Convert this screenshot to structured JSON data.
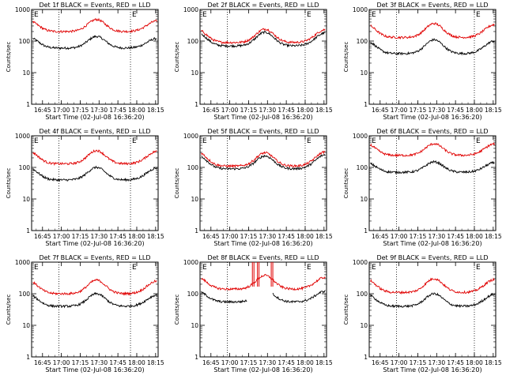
{
  "chart_data": [
    {
      "type": "line",
      "title": "Det 1f BLACK = Events, RED = LLD",
      "xlabel": "Start Time (02-Jul-08 16:36:20)",
      "ylabel": "Counts/sec",
      "yscale": "log",
      "ylim": [
        1,
        1000
      ],
      "xticks": [
        "16:45",
        "17:00",
        "17:15",
        "17:30",
        "17:45",
        "18:00",
        "18:15"
      ],
      "yticks": [
        "1",
        "10",
        "100",
        "1000"
      ],
      "markers": [
        {
          "label": "E",
          "position": "left"
        },
        {
          "label": "E",
          "position": "right"
        }
      ],
      "vlines": [
        "16:58",
        "17:55"
      ],
      "series": [
        {
          "color": "black",
          "baseline": 60,
          "peak1": 140,
          "peak2": 140,
          "start": 130,
          "end": 120
        },
        {
          "color": "red",
          "baseline": 200,
          "peak1": 480,
          "peak2": 480,
          "start": 430,
          "end": 430
        }
      ]
    },
    {
      "type": "line",
      "title": "Det 2f BLACK = Events, RED = LLD",
      "xlabel": "Start Time (02-Jul-08 16:36:20)",
      "ylabel": "Counts/sec",
      "yscale": "log",
      "ylim": [
        1,
        1000
      ],
      "xticks": [
        "16:45",
        "17:00",
        "17:15",
        "17:30",
        "17:45",
        "18:00",
        "18:15"
      ],
      "yticks": [
        "1",
        "10",
        "100",
        "1000"
      ],
      "markers": [
        {
          "label": "E",
          "position": "left"
        },
        {
          "label": "E",
          "position": "right"
        }
      ],
      "vlines": [
        "16:58",
        "18:00"
      ],
      "series": [
        {
          "color": "black",
          "baseline": 70,
          "peak1": 190,
          "peak2": 190,
          "start": 180,
          "end": 180
        },
        {
          "color": "red",
          "baseline": 90,
          "peak1": 240,
          "peak2": 240,
          "start": 230,
          "end": 230
        }
      ]
    },
    {
      "type": "line",
      "title": "Det 3f BLACK = Events, RED = LLD",
      "xlabel": "Start Time (02-Jul-08 16:36:20)",
      "ylabel": "Counts/sec",
      "yscale": "log",
      "ylim": [
        1,
        1000
      ],
      "xticks": [
        "16:45",
        "17:00",
        "17:15",
        "17:30",
        "17:45",
        "18:00",
        "18:15"
      ],
      "yticks": [
        "1",
        "10",
        "100",
        "1000"
      ],
      "markers": [
        {
          "label": "E",
          "position": "left"
        },
        {
          "label": "E",
          "position": "right"
        }
      ],
      "vlines": [
        "16:58",
        "18:00"
      ],
      "series": [
        {
          "color": "black",
          "baseline": 40,
          "peak1": 110,
          "peak2": 110,
          "start": 100,
          "end": 100
        },
        {
          "color": "red",
          "baseline": 130,
          "peak1": 360,
          "peak2": 360,
          "start": 330,
          "end": 330
        }
      ]
    },
    {
      "type": "line",
      "title": "Det 4f BLACK = Events, RED = LLD",
      "xlabel": "Start Time (02-Jul-08 16:36:20)",
      "ylabel": "Counts/sec",
      "yscale": "log",
      "ylim": [
        1,
        1000
      ],
      "xticks": [
        "16:45",
        "17:00",
        "17:15",
        "17:30",
        "17:45",
        "18:00",
        "18:15"
      ],
      "yticks": [
        "1",
        "10",
        "100",
        "1000"
      ],
      "markers": [
        {
          "label": "E",
          "position": "left"
        },
        {
          "label": "E",
          "position": "right"
        }
      ],
      "vlines": [
        "16:58",
        "17:55"
      ],
      "series": [
        {
          "color": "black",
          "baseline": 40,
          "peak1": 100,
          "peak2": 100,
          "start": 95,
          "end": 95
        },
        {
          "color": "red",
          "baseline": 130,
          "peak1": 340,
          "peak2": 340,
          "start": 320,
          "end": 320
        }
      ]
    },
    {
      "type": "line",
      "title": "Det 5f BLACK = Events, RED = LLD",
      "xlabel": "Start Time (02-Jul-08 16:36:20)",
      "ylabel": "Counts/sec",
      "yscale": "log",
      "ylim": [
        1,
        1000
      ],
      "xticks": [
        "16:45",
        "17:00",
        "17:15",
        "17:30",
        "17:45",
        "18:00",
        "18:15"
      ],
      "yticks": [
        "1",
        "10",
        "100",
        "1000"
      ],
      "markers": [
        {
          "label": "E",
          "position": "left"
        },
        {
          "label": "E",
          "position": "right"
        }
      ],
      "vlines": [
        "16:58",
        "18:00"
      ],
      "series": [
        {
          "color": "black",
          "baseline": 90,
          "peak1": 230,
          "peak2": 230,
          "start": 250,
          "end": 250
        },
        {
          "color": "red",
          "baseline": 110,
          "peak1": 290,
          "peak2": 290,
          "start": 310,
          "end": 310
        }
      ]
    },
    {
      "type": "line",
      "title": "Det 6f BLACK = Events, RED = LLD",
      "xlabel": "Start Time (02-Jul-08 16:36:20)",
      "ylabel": "Counts/sec",
      "yscale": "log",
      "ylim": [
        1,
        1000
      ],
      "xticks": [
        "16:45",
        "17:00",
        "17:15",
        "17:30",
        "17:45",
        "18:00",
        "18:15"
      ],
      "yticks": [
        "1",
        "10",
        "100",
        "1000"
      ],
      "markers": [
        {
          "label": "E",
          "position": "left"
        },
        {
          "label": "E",
          "position": "right"
        }
      ],
      "vlines": [
        "16:58",
        "18:00"
      ],
      "series": [
        {
          "color": "black",
          "baseline": 70,
          "peak1": 150,
          "peak2": 150,
          "start": 140,
          "end": 140
        },
        {
          "color": "red",
          "baseline": 240,
          "peak1": 560,
          "peak2": 560,
          "start": 550,
          "end": 550
        }
      ]
    },
    {
      "type": "line",
      "title": "Det 7f BLACK = Events, RED = LLD",
      "xlabel": "Start Time (02-Jul-08 16:36:20)",
      "ylabel": "Counts/sec",
      "yscale": "log",
      "ylim": [
        1,
        1000
      ],
      "xticks": [
        "16:45",
        "17:00",
        "17:15",
        "17:30",
        "17:45",
        "18:00",
        "18:15"
      ],
      "yticks": [
        "1",
        "10",
        "100",
        "1000"
      ],
      "markers": [
        {
          "label": "E",
          "position": "left"
        },
        {
          "label": "E",
          "position": "right"
        }
      ],
      "vlines": [
        "16:58",
        "17:55"
      ],
      "series": [
        {
          "color": "black",
          "baseline": 40,
          "peak1": 100,
          "peak2": 100,
          "start": 90,
          "end": 90
        },
        {
          "color": "red",
          "baseline": 100,
          "peak1": 270,
          "peak2": 270,
          "start": 250,
          "end": 250
        }
      ]
    },
    {
      "type": "line",
      "title": "Det 8f BLACK = Events, RED = LLD",
      "xlabel": "Start Time (02-Jul-08 16:36:20)",
      "ylabel": "Counts/sec",
      "yscale": "log",
      "ylim": [
        1,
        1000
      ],
      "xticks": [
        "16:45",
        "17:00",
        "17:15",
        "17:30",
        "17:45",
        "18:00",
        "18:15"
      ],
      "yticks": [
        "1",
        "10",
        "100",
        "1000"
      ],
      "markers": [
        {
          "label": "E",
          "position": "left"
        },
        {
          "label": "E",
          "position": "right"
        }
      ],
      "vlines": [
        "16:58",
        "18:00"
      ],
      "series": [
        {
          "color": "black",
          "baseline": 55,
          "peak1": 130,
          "peak2": 130,
          "start": 120,
          "end": 120,
          "gap": [
            "17:14",
            "17:34"
          ]
        },
        {
          "color": "red",
          "baseline": 140,
          "peak1": 380,
          "peak2": 380,
          "start": 330,
          "end": 330,
          "spikes": [
            "17:18",
            "17:22",
            "17:33"
          ]
        }
      ]
    },
    {
      "type": "line",
      "title": "Det 9f BLACK = Events, RED = LLD",
      "xlabel": "Start Time (02-Jul-08 16:36:20)",
      "ylabel": "Counts/sec",
      "yscale": "log",
      "ylim": [
        1,
        1000
      ],
      "xticks": [
        "16:45",
        "17:00",
        "17:15",
        "17:30",
        "17:45",
        "18:00",
        "18:15"
      ],
      "yticks": [
        "1",
        "10",
        "100",
        "1000"
      ],
      "markers": [
        {
          "label": "E",
          "position": "left"
        },
        {
          "label": "E",
          "position": "right"
        }
      ],
      "vlines": [
        "16:58",
        "18:00"
      ],
      "series": [
        {
          "color": "black",
          "baseline": 40,
          "peak1": 100,
          "peak2": 100,
          "start": 95,
          "end": 95
        },
        {
          "color": "red",
          "baseline": 110,
          "peak1": 300,
          "peak2": 300,
          "start": 280,
          "end": 280
        }
      ]
    }
  ]
}
